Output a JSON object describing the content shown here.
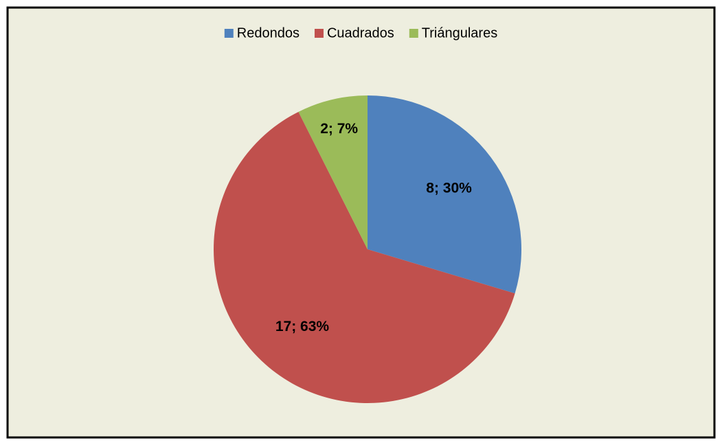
{
  "chart_data": {
    "type": "pie",
    "categories": [
      "Redondos",
      "Cuadrados",
      "Triángulares"
    ],
    "values": [
      8,
      17,
      2
    ],
    "value_labels": [
      "8; 30%",
      "17; 63%",
      "2; 7%"
    ],
    "colors": [
      "#4f81bd",
      "#c0504d",
      "#9bbb59"
    ],
    "legend": "top"
  }
}
